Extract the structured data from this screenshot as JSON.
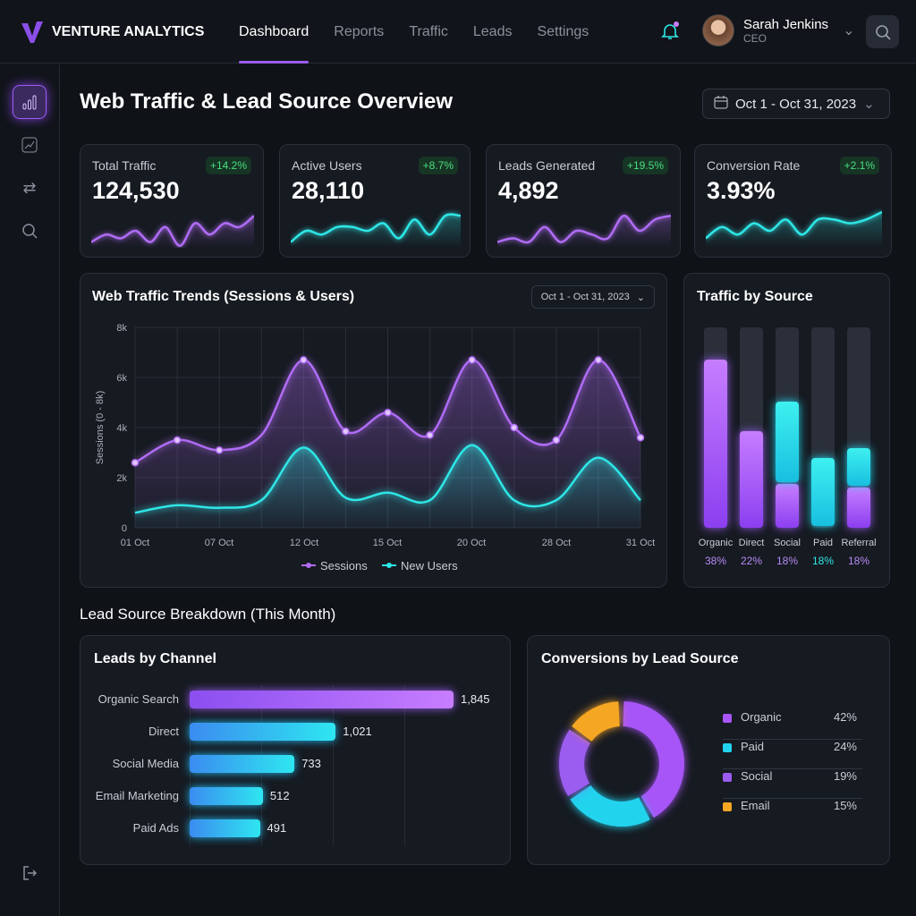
{
  "app": {
    "name": "VENTURE ANALYTICS"
  },
  "nav": [
    "Dashboard",
    "Reports",
    "Traffic",
    "Leads",
    "Settings"
  ],
  "user": {
    "name": "Sarah Jenkins",
    "role": "CEO"
  },
  "page": {
    "title": "Web Traffic & Lead Source Overview",
    "date_range": "Oct 1 - Oct 31, 2023"
  },
  "kpis": [
    {
      "label": "Total Traffic",
      "value": "124,530",
      "change": "+14.2%",
      "color": "#b06cf5"
    },
    {
      "label": "Active Users",
      "value": "28,110",
      "change": "+8.7%",
      "color": "#2ee6e6"
    },
    {
      "label": "Leads Generated",
      "value": "4,892",
      "change": "+19.5%",
      "color": "#b06cf5"
    },
    {
      "label": "Conversion Rate",
      "value": "3.93%",
      "change": "+2.1%",
      "color": "#2ee6e6"
    }
  ],
  "trend": {
    "title": "Web Traffic Trends (Sessions & Users)",
    "date_range": "Oct 1 - Oct 31, 2023"
  },
  "source": {
    "title": "Traffic by Source"
  },
  "lead_section": {
    "title": "Lead Source Breakdown (This Month)"
  },
  "channel": {
    "title": "Leads by Channel"
  },
  "conv": {
    "title": "Conversions by Lead Source"
  },
  "chart_data": [
    {
      "type": "line",
      "title": "Web Traffic Trends (Sessions & Users)",
      "ylabel": "Sessions (0 - 8k)",
      "ylim": [
        0,
        8
      ],
      "yticks": [
        "0",
        "2k",
        "4k",
        "6k",
        "8k"
      ],
      "xticks": [
        "01 Oct",
        "07 Oct",
        "12 Oct",
        "15 Oct",
        "20 Oct",
        "28 Oct",
        "31 Oct"
      ],
      "series": [
        {
          "name": "Sessions",
          "color": "#b06cf5",
          "values": [
            2.6,
            3.5,
            3.1,
            3.7,
            6.7,
            3.85,
            4.6,
            3.7,
            6.7,
            4.0,
            3.5,
            6.7,
            3.6
          ]
        },
        {
          "name": "New Users",
          "color": "#2ee6e6",
          "values": [
            0.6,
            0.9,
            0.8,
            1.1,
            3.2,
            1.2,
            1.4,
            1.1,
            3.3,
            1.1,
            1.1,
            2.8,
            1.1
          ]
        }
      ]
    },
    {
      "type": "bar",
      "title": "Traffic by Source",
      "categories": [
        "Organic",
        "Direct",
        "Social",
        "Paid",
        "Referral"
      ],
      "labels": [
        "38%",
        "22%",
        "18%",
        "18%",
        "18%"
      ],
      "stack_purple": [
        0.84,
        0.48,
        0.22,
        0,
        0.2
      ],
      "stack_cyan": [
        0,
        0,
        0.4,
        0.34,
        0.19
      ]
    },
    {
      "type": "bar",
      "title": "Leads by Channel",
      "categories": [
        "Organic Search",
        "Direct",
        "Social Media",
        "Email Marketing",
        "Paid Ads"
      ],
      "values": [
        1845,
        1021,
        733,
        512,
        491
      ],
      "labels": [
        "1,845",
        "1,021",
        "733",
        "512",
        "491"
      ]
    },
    {
      "type": "pie",
      "title": "Conversions by Lead Source",
      "categories": [
        "Organic",
        "Paid",
        "Social",
        "Email"
      ],
      "values": [
        42,
        24,
        19,
        15
      ],
      "labels": [
        "42%",
        "24%",
        "19%",
        "15%"
      ],
      "colors": [
        "#a855f7",
        "#22d3ee",
        "#9b5cf0",
        "#f5a623"
      ]
    }
  ]
}
